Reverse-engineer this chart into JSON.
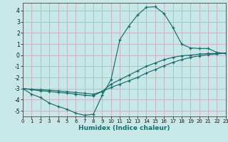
{
  "xlabel": "Humidex (Indice chaleur)",
  "background_color": "#c8e8e8",
  "grid_color": "#c8b4c8",
  "line_color": "#1a6b6b",
  "xlim": [
    0,
    23
  ],
  "ylim": [
    -5.5,
    4.7
  ],
  "yticks": [
    -5,
    -4,
    -3,
    -2,
    -1,
    0,
    1,
    2,
    3,
    4
  ],
  "xticks": [
    0,
    1,
    2,
    3,
    4,
    5,
    6,
    7,
    8,
    9,
    10,
    11,
    12,
    13,
    14,
    15,
    16,
    17,
    18,
    19,
    20,
    21,
    22,
    23
  ],
  "curve1_x": [
    0,
    1,
    2,
    3,
    4,
    5,
    6,
    7,
    8,
    9,
    10,
    11,
    12,
    13,
    14,
    15,
    16,
    17,
    18,
    19,
    20,
    21,
    22,
    23
  ],
  "curve1_y": [
    -3.0,
    -3.5,
    -3.8,
    -4.3,
    -4.6,
    -4.85,
    -5.2,
    -5.4,
    -5.3,
    -3.6,
    -2.2,
    1.4,
    2.6,
    3.6,
    4.3,
    4.35,
    3.75,
    2.5,
    1.0,
    0.65,
    0.6,
    0.6,
    0.25,
    0.15
  ],
  "curve2_x": [
    0,
    1,
    2,
    3,
    4,
    5,
    6,
    7,
    8,
    9,
    10,
    11,
    12,
    13,
    14,
    15,
    16,
    17,
    18,
    19,
    20,
    21,
    22,
    23
  ],
  "curve2_y": [
    -3.0,
    -3.1,
    -3.2,
    -3.25,
    -3.35,
    -3.4,
    -3.5,
    -3.6,
    -3.65,
    -3.25,
    -2.6,
    -2.2,
    -1.8,
    -1.4,
    -1.0,
    -0.7,
    -0.4,
    -0.2,
    -0.05,
    0.0,
    0.1,
    0.15,
    0.15,
    0.2
  ],
  "curve3_x": [
    0,
    1,
    2,
    3,
    4,
    5,
    6,
    7,
    8,
    9,
    10,
    11,
    12,
    13,
    14,
    15,
    16,
    17,
    18,
    19,
    20,
    21,
    22,
    23
  ],
  "curve3_y": [
    -3.0,
    -3.05,
    -3.1,
    -3.15,
    -3.2,
    -3.28,
    -3.35,
    -3.42,
    -3.5,
    -3.25,
    -2.9,
    -2.6,
    -2.3,
    -2.0,
    -1.6,
    -1.3,
    -0.95,
    -0.65,
    -0.4,
    -0.2,
    -0.05,
    0.05,
    0.1,
    0.2
  ]
}
